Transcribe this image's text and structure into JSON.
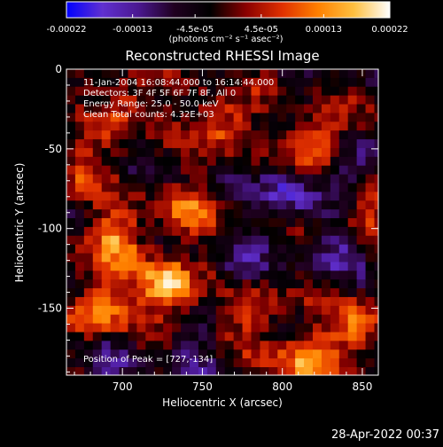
{
  "colorbar": {
    "tick_labels": [
      "-0.00022",
      "-0.00013",
      "-4.5e-05",
      "4.5e-05",
      "0.00013",
      "0.00022"
    ],
    "tick_values": [
      -0.00022,
      -0.00013,
      -4.5e-05,
      4.5e-05,
      0.00013,
      0.00022
    ],
    "range": [
      -0.00022,
      0.00022
    ],
    "units_label": "(photons cm⁻² s⁻¹ asec⁻²)",
    "colormap": [
      "#0000ff",
      "#6030d0",
      "#4a1890",
      "#200020",
      "#000000",
      "#8a0000",
      "#e03000",
      "#ff8000",
      "#ffc040",
      "#ffffff"
    ]
  },
  "chart_data": {
    "type": "heatmap",
    "title": "Reconstructed RHESSI Image",
    "xlabel": "Heliocentric X (arcsec)",
    "ylabel": "Heliocentric Y (arcsec)",
    "xlim": [
      665,
      860
    ],
    "ylim": [
      -192,
      0
    ],
    "xticks": [
      700,
      750,
      800,
      850
    ],
    "yticks": [
      0,
      -50,
      -100,
      -150
    ],
    "annotations": [
      "11-Jan-2004 16:08:44.000 to 16:14:44.000",
      "Detectors: 3F 4F 5F 6F 7F 8F, All 0",
      "Energy Range: 25.0 - 50.0 keV",
      "Clean     Total counts: 4.32E+03"
    ],
    "peak_label": "Position of Peak = [727,-134]",
    "peak": [
      727,
      -134
    ],
    "hotspots": [
      {
        "x": 727,
        "y": -134,
        "v": 1.0
      },
      {
        "x": 686,
        "y": -147,
        "v": 0.85
      },
      {
        "x": 820,
        "y": -45,
        "v": 0.9
      },
      {
        "x": 690,
        "y": -105,
        "v": 0.75
      },
      {
        "x": 735,
        "y": -88,
        "v": 0.6
      },
      {
        "x": 760,
        "y": -30,
        "v": 0.65
      },
      {
        "x": 845,
        "y": -160,
        "v": 0.7
      },
      {
        "x": 810,
        "y": -180,
        "v": 0.75
      },
      {
        "x": 700,
        "y": -20,
        "v": 0.55
      },
      {
        "x": 780,
        "y": -150,
        "v": 0.5
      },
      {
        "x": 850,
        "y": -90,
        "v": 0.45
      },
      {
        "x": 670,
        "y": -60,
        "v": 0.5
      }
    ],
    "coldspots": [
      {
        "x": 800,
        "y": -75,
        "v": -0.6
      },
      {
        "x": 840,
        "y": -55,
        "v": -0.55
      },
      {
        "x": 830,
        "y": -110,
        "v": -0.45
      },
      {
        "x": 770,
        "y": -120,
        "v": -0.35
      },
      {
        "x": 740,
        "y": -180,
        "v": -0.3
      },
      {
        "x": 690,
        "y": -175,
        "v": -0.3
      }
    ]
  },
  "footer": {
    "timestamp": "28-Apr-2022 00:37"
  }
}
